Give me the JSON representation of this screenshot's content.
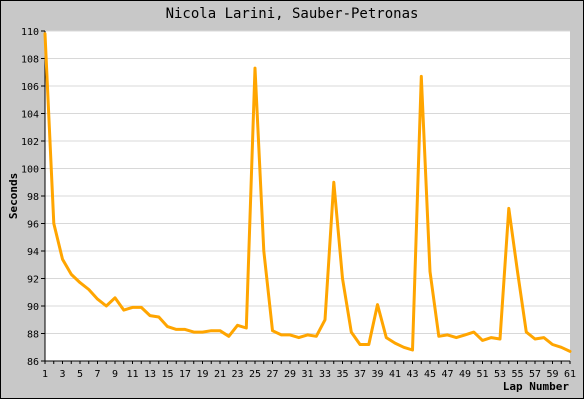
{
  "chart_data": {
    "type": "line",
    "title": "Nicola Larini, Sauber-Petronas",
    "xlabel": "Lap Number",
    "ylabel": "Seconds",
    "ylim": [
      86,
      110
    ],
    "xlim": [
      1,
      61
    ],
    "yticks": [
      86,
      88,
      90,
      92,
      94,
      96,
      98,
      100,
      102,
      104,
      106,
      108,
      110
    ],
    "xticks": [
      1,
      3,
      5,
      7,
      9,
      11,
      13,
      15,
      17,
      19,
      21,
      23,
      25,
      27,
      29,
      31,
      33,
      35,
      37,
      39,
      41,
      43,
      45,
      47,
      49,
      51,
      53,
      55,
      57,
      59,
      61
    ],
    "grid": true,
    "series": [
      {
        "color": "#FFA500",
        "x": [
          1,
          2,
          3,
          4,
          5,
          6,
          7,
          8,
          9,
          10,
          11,
          12,
          13,
          14,
          15,
          16,
          17,
          18,
          19,
          20,
          21,
          22,
          23,
          24,
          25,
          26,
          27,
          28,
          29,
          30,
          31,
          32,
          33,
          34,
          35,
          36,
          37,
          38,
          39,
          40,
          41,
          42,
          43,
          44,
          45,
          46,
          47,
          48,
          49,
          50,
          51,
          52,
          53,
          54,
          55,
          56,
          57,
          58,
          59,
          60,
          61
        ],
        "y": [
          109.8,
          96.0,
          93.4,
          92.3,
          91.7,
          91.2,
          90.5,
          90.0,
          90.6,
          89.7,
          89.9,
          89.9,
          89.3,
          89.2,
          88.5,
          88.3,
          88.3,
          88.1,
          88.1,
          88.2,
          88.2,
          87.8,
          88.6,
          88.4,
          107.3,
          94.0,
          88.2,
          87.9,
          87.9,
          87.7,
          87.9,
          87.8,
          89.0,
          99.0,
          92.0,
          88.1,
          87.2,
          87.2,
          90.1,
          87.7,
          87.3,
          87.0,
          86.8,
          106.7,
          92.5,
          87.8,
          87.9,
          87.7,
          87.9,
          88.1,
          87.5,
          87.7,
          87.6,
          97.1,
          92.5,
          88.1,
          87.6,
          87.7,
          87.2,
          87.0,
          86.7
        ]
      }
    ]
  }
}
